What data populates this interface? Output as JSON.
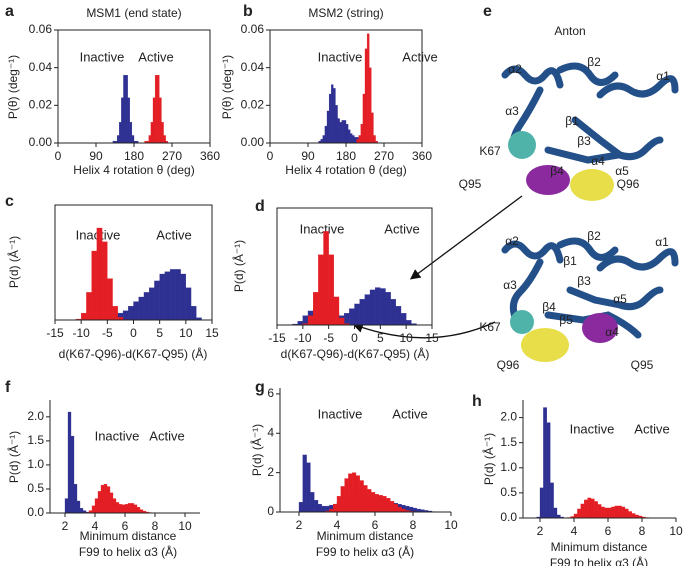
{
  "chart_data": [
    {
      "type": "histogram",
      "panel": "a",
      "title": "MSM1 (end state)",
      "xlabel": "Helix 4 rotation θ (deg)",
      "ylabel": "P(θ) (deg⁻¹)",
      "box": true,
      "xlim": [
        0,
        360
      ],
      "xticks": [
        0,
        90,
        180,
        270,
        360
      ],
      "ylim": [
        0,
        0.06
      ],
      "yticks": [
        {
          "value": 0,
          "label": "0.00"
        },
        {
          "value": 0.02,
          "label": "0.02"
        },
        {
          "value": 0.04,
          "label": "0.04"
        },
        {
          "value": 0.06,
          "label": "0.06"
        }
      ],
      "bins": [
        120,
        125,
        130,
        135,
        140,
        145,
        150,
        155,
        160,
        165,
        170,
        175,
        180,
        185,
        190,
        195,
        200,
        205,
        210,
        215,
        220,
        225,
        230,
        235,
        240,
        245,
        250,
        255,
        260
      ],
      "series": [
        {
          "name": "Inactive",
          "color": "#2e3192",
          "values": [
            0,
            0,
            0.001,
            0.001,
            0.004,
            0.011,
            0.024,
            0.036,
            0.036,
            0.024,
            0.011,
            0.004,
            0.001,
            0.001,
            0,
            0,
            0,
            0,
            0,
            0,
            0,
            0,
            0,
            0,
            0,
            0,
            0,
            0
          ]
        },
        {
          "name": "Active",
          "color": "#e31e24",
          "values": [
            0,
            0,
            0,
            0,
            0,
            0,
            0,
            0,
            0,
            0,
            0,
            0,
            0,
            0,
            0,
            0,
            0,
            0.001,
            0.001,
            0.004,
            0.011,
            0.024,
            0.036,
            0.036,
            0.024,
            0.011,
            0.004,
            0.001
          ]
        }
      ]
    },
    {
      "type": "histogram",
      "panel": "b",
      "title": "MSM2 (string)",
      "xlabel": "Helix 4 rotation θ (deg)",
      "ylabel": "P(θ) (deg⁻¹)",
      "box": true,
      "xlim": [
        0,
        360
      ],
      "xticks": [
        0,
        90,
        180,
        270,
        360
      ],
      "ylim": [
        0,
        0.06
      ],
      "yticks": [
        {
          "value": 0,
          "label": "0.00"
        },
        {
          "value": 0.02,
          "label": "0.02"
        },
        {
          "value": 0.04,
          "label": "0.04"
        },
        {
          "value": 0.06,
          "label": "0.06"
        }
      ],
      "bins": [
        110,
        115,
        120,
        125,
        130,
        135,
        140,
        145,
        150,
        155,
        160,
        165,
        170,
        175,
        180,
        185,
        190,
        195,
        200,
        205,
        210,
        215,
        220,
        225,
        230,
        235,
        240,
        245,
        250,
        255,
        260
      ],
      "series": [
        {
          "name": "Inactive",
          "color": "#2e3192",
          "values": [
            0,
            0.001,
            0.002,
            0.004,
            0.009,
            0.017,
            0.026,
            0.031,
            0.029,
            0.02,
            0.013,
            0.011,
            0.012,
            0.012,
            0.01,
            0.007,
            0.005,
            0.004,
            0.003,
            0.003,
            0.003,
            0.002,
            0.001,
            0.001,
            0,
            0,
            0,
            0,
            0,
            0
          ]
        },
        {
          "name": "Active",
          "color": "#e31e24",
          "values": [
            0,
            0,
            0,
            0,
            0,
            0,
            0,
            0,
            0,
            0,
            0,
            0,
            0,
            0,
            0,
            0,
            0,
            0,
            0,
            0.002,
            0.004,
            0.01,
            0.026,
            0.05,
            0.058,
            0.04,
            0.016,
            0.004,
            0.001,
            0
          ]
        }
      ]
    },
    {
      "type": "histogram",
      "panel": "c",
      "xlabel": "d(K67-Q96)-d(K67-Q95) (Å)",
      "ylabel": "P(d) (Å⁻¹)",
      "box": true,
      "xlim": [
        -15,
        15
      ],
      "xticks": [
        -15,
        -10,
        -5,
        0,
        5,
        10,
        15
      ],
      "ylim": [
        0,
        0.25
      ],
      "bins": [
        -15,
        -14,
        -13,
        -12,
        -11,
        -10,
        -9,
        -8,
        -7,
        -6,
        -5,
        -4,
        -3,
        -2,
        -1,
        0,
        1,
        2,
        3,
        4,
        5,
        6,
        7,
        8,
        9,
        10,
        11,
        12,
        13,
        14,
        15
      ],
      "series": [
        {
          "name": "Inactive",
          "color": "#2e3192",
          "values": [
            0,
            0,
            0,
            0,
            0,
            0,
            0,
            0,
            0.001,
            0.003,
            0.005,
            0.01,
            0.015,
            0.02,
            0.03,
            0.04,
            0.05,
            0.06,
            0.07,
            0.085,
            0.1,
            0.105,
            0.11,
            0.11,
            0.1,
            0.07,
            0.03,
            0.005,
            0,
            0
          ]
        },
        {
          "name": "Active",
          "color": "#e31e24",
          "values": [
            0,
            0,
            0,
            0,
            0.002,
            0.015,
            0.06,
            0.15,
            0.2,
            0.17,
            0.09,
            0.03,
            0.006,
            0.001,
            0,
            0,
            0,
            0,
            0,
            0,
            0,
            0,
            0,
            0,
            0,
            0,
            0,
            0,
            0,
            0
          ]
        }
      ]
    },
    {
      "type": "histogram",
      "panel": "d",
      "xlabel": "d(K67-Q96)-d(K67-Q95) (Å)",
      "ylabel": "P(d) (Å⁻¹)",
      "box": true,
      "xlim": [
        -15,
        15
      ],
      "xticks": [
        -15,
        -10,
        -5,
        0,
        5,
        10,
        15
      ],
      "ylim": [
        0,
        0.25
      ],
      "bins": [
        -15,
        -14,
        -13,
        -12,
        -11,
        -10,
        -9,
        -8,
        -7,
        -6,
        -5,
        -4,
        -3,
        -2,
        -1,
        0,
        1,
        2,
        3,
        4,
        5,
        6,
        7,
        8,
        9,
        10,
        11,
        12,
        13,
        14,
        15
      ],
      "series": [
        {
          "name": "Inactive",
          "color": "#2e3192",
          "values": [
            0,
            0,
            0,
            0.002,
            0.008,
            0.02,
            0.03,
            0.035,
            0.035,
            0.035,
            0.03,
            0.025,
            0.02,
            0.025,
            0.035,
            0.045,
            0.055,
            0.065,
            0.075,
            0.08,
            0.078,
            0.07,
            0.055,
            0.04,
            0.025,
            0.01,
            0.003,
            0,
            0,
            0
          ]
        },
        {
          "name": "Active",
          "color": "#e31e24",
          "values": [
            0,
            0,
            0,
            0,
            0,
            0.003,
            0.02,
            0.07,
            0.15,
            0.2,
            0.15,
            0.06,
            0.015,
            0.003,
            0,
            0,
            0,
            0,
            0,
            0,
            0,
            0,
            0,
            0,
            0,
            0,
            0,
            0,
            0,
            0
          ]
        }
      ]
    },
    {
      "type": "histogram",
      "panel": "f",
      "xlabel": [
        "Minimum distance",
        "F99 to helix α3 (Å)"
      ],
      "ylabel": "P(d) (Å⁻¹)",
      "box": false,
      "xlim": [
        1,
        11
      ],
      "xticks": [
        2,
        4,
        6,
        8,
        10
      ],
      "ylim": [
        0,
        2.35
      ],
      "yticks": [
        {
          "value": 0,
          "label": "0.0"
        },
        {
          "value": 0.5,
          "label": "0.5"
        },
        {
          "value": 1,
          "label": "1.0"
        },
        {
          "value": 1.5,
          "label": "1.5"
        },
        {
          "value": 2,
          "label": "2.0"
        }
      ],
      "bins": [
        1.8,
        2.0,
        2.2,
        2.4,
        2.6,
        2.8,
        3.0,
        3.2,
        3.4,
        3.6,
        3.8,
        4.0,
        4.2,
        4.4,
        4.6,
        4.8,
        5.0,
        5.2,
        5.4,
        5.6,
        5.8,
        6.0,
        6.2,
        6.4,
        6.6,
        6.8,
        7.0,
        7.2,
        7.4,
        7.6,
        7.8,
        8.0,
        8.2,
        8.4
      ],
      "series": [
        {
          "name": "Inactive",
          "color": "#2e3192",
          "values": [
            0,
            0.3,
            2.1,
            1.6,
            0.6,
            0.25,
            0.1,
            0.05,
            0.02,
            0.01,
            0,
            0,
            0,
            0,
            0,
            0,
            0,
            0,
            0,
            0,
            0,
            0,
            0,
            0,
            0,
            0,
            0,
            0,
            0,
            0,
            0,
            0,
            0
          ]
        },
        {
          "name": "Active",
          "color": "#e31e24",
          "values": [
            0,
            0,
            0,
            0,
            0,
            0,
            0,
            0,
            0.01,
            0.05,
            0.15,
            0.3,
            0.45,
            0.58,
            0.6,
            0.55,
            0.42,
            0.3,
            0.22,
            0.18,
            0.17,
            0.18,
            0.2,
            0.2,
            0.17,
            0.12,
            0.07,
            0.04,
            0.02,
            0.01,
            0,
            0,
            0
          ]
        }
      ]
    },
    {
      "type": "histogram",
      "panel": "g",
      "xlabel": [
        "Minimum distance",
        "F99 to helix α3 (Å)"
      ],
      "ylabel": "P(d) (Å⁻¹)",
      "box": false,
      "xlim": [
        1,
        10
      ],
      "xticks": [
        2,
        4,
        6,
        8,
        10
      ],
      "ylim": [
        0,
        6.3
      ],
      "yticks": [
        0,
        2,
        4,
        6
      ],
      "bins": [
        1.8,
        2.0,
        2.2,
        2.4,
        2.6,
        2.8,
        3.0,
        3.2,
        3.4,
        3.6,
        3.8,
        4.0,
        4.2,
        4.4,
        4.6,
        4.8,
        5.0,
        5.2,
        5.4,
        5.6,
        5.8,
        6.0,
        6.2,
        6.4,
        6.6,
        6.8,
        7.0,
        7.2,
        7.4,
        7.6,
        7.8,
        8.0,
        8.2,
        8.4,
        8.6,
        8.8,
        9.0,
        9.2,
        9.4
      ],
      "series": [
        {
          "name": "Inactive",
          "color": "#2e3192",
          "values": [
            0,
            0.5,
            2.9,
            2.5,
            1.0,
            0.6,
            0.4,
            0.3,
            0.3,
            0.35,
            0.4,
            0.5,
            0.6,
            0.7,
            0.8,
            0.85,
            0.9,
            0.9,
            0.9,
            0.85,
            0.8,
            0.75,
            0.7,
            0.65,
            0.6,
            0.5,
            0.45,
            0.4,
            0.35,
            0.3,
            0.25,
            0.2,
            0.15,
            0.12,
            0.08,
            0.05,
            0.02,
            0.01
          ]
        },
        {
          "name": "Active",
          "color": "#e31e24",
          "values": [
            0,
            0,
            0,
            0,
            0,
            0,
            0,
            0,
            0.05,
            0.15,
            0.4,
            0.8,
            1.3,
            1.7,
            1.95,
            2.0,
            1.85,
            1.6,
            1.35,
            1.15,
            1.0,
            0.9,
            0.85,
            0.8,
            0.7,
            0.55,
            0.4,
            0.25,
            0.15,
            0.08,
            0.04,
            0.02,
            0,
            0,
            0,
            0,
            0,
            0
          ]
        }
      ]
    },
    {
      "type": "histogram",
      "panel": "h",
      "xlabel": [
        "Minimum distance",
        "F99 to helix α3 (Å)"
      ],
      "ylabel": "P(d) (Å⁻¹)",
      "box": false,
      "xlim": [
        1,
        10
      ],
      "xticks": [
        2,
        4,
        6,
        8,
        10
      ],
      "ylim": [
        0,
        2.35
      ],
      "yticks": [
        {
          "value": 0,
          "label": "0.0"
        },
        {
          "value": 0.5,
          "label": "0.5"
        },
        {
          "value": 1,
          "label": "1.0"
        },
        {
          "value": 1.5,
          "label": "1.5"
        },
        {
          "value": 2,
          "label": "2.0"
        }
      ],
      "bins": [
        1.8,
        2.0,
        2.2,
        2.4,
        2.6,
        2.8,
        3.0,
        3.2,
        3.4,
        3.6,
        3.8,
        4.0,
        4.2,
        4.4,
        4.6,
        4.8,
        5.0,
        5.2,
        5.4,
        5.6,
        5.8,
        6.0,
        6.2,
        6.4,
        6.6,
        6.8,
        7.0,
        7.2,
        7.4,
        7.6,
        7.8,
        8.0,
        8.2,
        8.4,
        8.6,
        8.8,
        9.0
      ],
      "series": [
        {
          "name": "Inactive",
          "color": "#2e3192",
          "values": [
            0.02,
            0.6,
            2.2,
            1.9,
            0.7,
            0.2,
            0.06,
            0.02,
            0,
            0,
            0,
            0,
            0,
            0,
            0,
            0,
            0,
            0,
            0,
            0,
            0,
            0,
            0,
            0,
            0,
            0,
            0,
            0,
            0,
            0,
            0,
            0,
            0,
            0,
            0,
            0
          ]
        },
        {
          "name": "Active",
          "color": "#e31e24",
          "values": [
            0,
            0,
            0,
            0,
            0,
            0,
            0,
            0,
            0,
            0.01,
            0.03,
            0.08,
            0.18,
            0.28,
            0.36,
            0.4,
            0.38,
            0.33,
            0.27,
            0.22,
            0.2,
            0.2,
            0.22,
            0.24,
            0.24,
            0.22,
            0.18,
            0.13,
            0.09,
            0.06,
            0.04,
            0.02,
            0.01,
            0,
            0,
            0
          ]
        }
      ]
    }
  ],
  "structure": {
    "panel": "e",
    "title": "Anton",
    "labels_top": [
      "α2",
      "β2",
      "α1",
      "β1",
      "α3",
      "β3",
      "β4",
      "α4",
      "α5",
      "K67",
      "Q95",
      "Q96"
    ],
    "labels_bottom": [
      "α2",
      "β2",
      "α1",
      "β1",
      "α3",
      "β3",
      "β4",
      "β5",
      "α5",
      "K67",
      "α4",
      "Q96",
      "Q95"
    ]
  }
}
